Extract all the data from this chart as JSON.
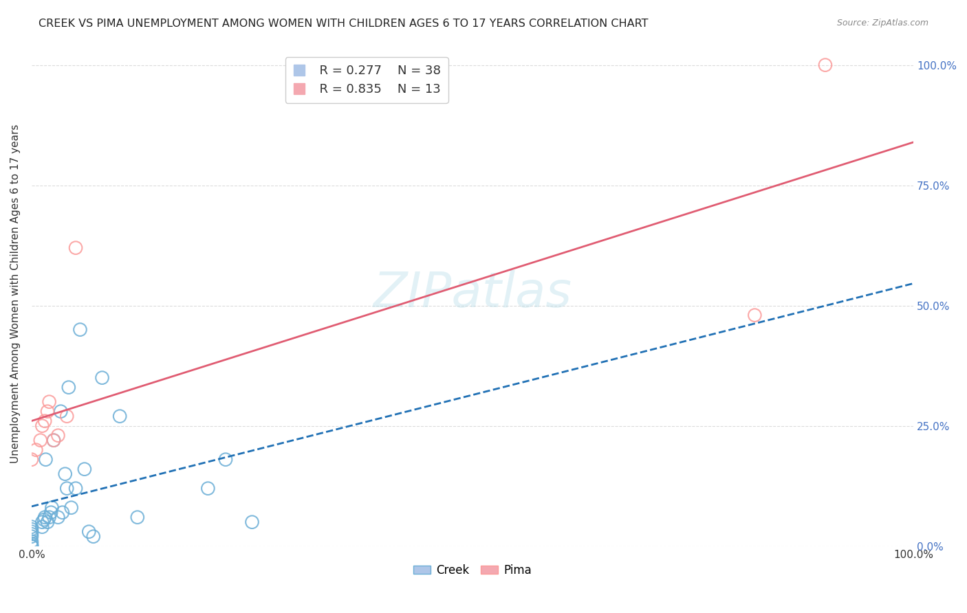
{
  "title": "CREEK VS PIMA UNEMPLOYMENT AMONG WOMEN WITH CHILDREN AGES 6 TO 17 YEARS CORRELATION CHART",
  "source": "Source: ZipAtlas.com",
  "ylabel": "Unemployment Among Women with Children Ages 6 to 17 years",
  "xlabel": "",
  "creek_R": 0.277,
  "creek_N": 38,
  "pima_R": 0.835,
  "pima_N": 13,
  "creek_color": "#6baed6",
  "pima_color": "#fb9a99",
  "creek_line_color": "#2171b5",
  "pima_line_color": "#e05c72",
  "watermark": "ZIPatlas",
  "creek_x": [
    0.0,
    0.0,
    0.0,
    0.0,
    0.0,
    0.0,
    0.0,
    0.0,
    0.0,
    0.0,
    0.012,
    0.012,
    0.014,
    0.015,
    0.016,
    0.018,
    0.02,
    0.022,
    0.023,
    0.025,
    0.03,
    0.033,
    0.035,
    0.038,
    0.04,
    0.042,
    0.045,
    0.05,
    0.055,
    0.06,
    0.065,
    0.07,
    0.08,
    0.1,
    0.12,
    0.2,
    0.22,
    0.25
  ],
  "creek_y": [
    0.0,
    0.0,
    0.0,
    0.005,
    0.01,
    0.02,
    0.025,
    0.03,
    0.035,
    0.04,
    0.04,
    0.05,
    0.055,
    0.06,
    0.18,
    0.05,
    0.06,
    0.07,
    0.08,
    0.22,
    0.06,
    0.28,
    0.07,
    0.15,
    0.12,
    0.33,
    0.08,
    0.12,
    0.45,
    0.16,
    0.03,
    0.02,
    0.35,
    0.27,
    0.06,
    0.12,
    0.18,
    0.05
  ],
  "pima_x": [
    0.0,
    0.005,
    0.01,
    0.012,
    0.015,
    0.018,
    0.02,
    0.025,
    0.03,
    0.04,
    0.05,
    0.82,
    0.9
  ],
  "pima_y": [
    0.18,
    0.2,
    0.22,
    0.25,
    0.26,
    0.28,
    0.3,
    0.22,
    0.23,
    0.27,
    0.62,
    0.48,
    1.0
  ],
  "xlim": [
    0.0,
    1.0
  ],
  "ylim": [
    0.0,
    1.05
  ],
  "yticks": [
    0.0,
    0.25,
    0.5,
    0.75,
    1.0
  ],
  "ytick_labels": [
    "0.0%",
    "25.0%",
    "50.0%",
    "75.0%",
    "100.0%"
  ],
  "xticks": [
    0.0,
    0.25,
    0.5,
    0.75,
    1.0
  ],
  "xtick_labels": [
    "0.0%",
    "",
    "",
    "",
    "100.0%"
  ],
  "grid_color": "#cccccc",
  "bg_color": "#ffffff"
}
